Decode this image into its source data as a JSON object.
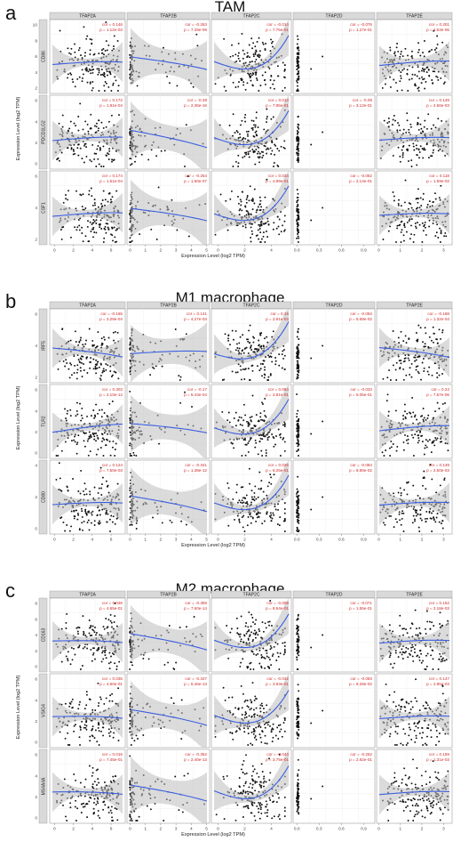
{
  "chart_data": [
    {
      "type": "scatter",
      "panel_label": "a",
      "title": "TAM",
      "columns": [
        "TFAP2A",
        "TFAP2B",
        "TFAP2C",
        "TFAP2D",
        "TFAP2E"
      ],
      "rows": [
        "CD86",
        "PDCD1LG2",
        "CSF1"
      ],
      "xlabel": "Expression Level (log2 TPM)",
      "ylabel": "Expression Level (log2 TPM)",
      "stats": [
        [
          {
            "cor": "0.146",
            "p": "1.12e-03"
          },
          {
            "cor": "-0.263",
            "p": "7.29e-09"
          },
          {
            "cor": "-0.014",
            "p": "7.75e-01"
          },
          {
            "cor": "-0.076",
            "p": "1.27e-01"
          },
          {
            "cor": "0.201",
            "p": "4.63e-06"
          }
        ],
        [
          {
            "cor": "0.172",
            "p": "1.81e-04"
          },
          {
            "cor": "-0.39",
            "p": "2.36e-16"
          },
          {
            "cor": "0.013",
            "p": "7.95e-01"
          },
          {
            "cor": "-0.05",
            "p": "3.12e-01"
          },
          {
            "cor": "0.149",
            "p": "2.56e-03"
          }
        ],
        [
          {
            "cor": "0.174",
            "p": "1.51e-04"
          },
          {
            "cor": "-0.254",
            "p": "1.50e-07"
          },
          {
            "cor": "0.034",
            "p": "4.99e-01"
          },
          {
            "cor": "-0.062",
            "p": "2.14e-01"
          },
          {
            "cor": "0.118",
            "p": "1.59e-02"
          }
        ]
      ]
    },
    {
      "type": "scatter",
      "panel_label": "b",
      "title": "M1 macrophage",
      "columns": [
        "TFAP2A",
        "TFAP2B",
        "TFAP2C",
        "TFAP2D",
        "TFAP2E"
      ],
      "rows": [
        "IRF5",
        "TLR2",
        "CD80"
      ],
      "xlabel": "Expression Level (log2 TPM)",
      "ylabel": "Expression Level (log2 TPM)",
      "stats": [
        [
          {
            "cor": "-0.165",
            "p": "3.28e-04"
          },
          {
            "cor": "0.141",
            "p": "4.27e-03"
          },
          {
            "cor": "0.15",
            "p": "2.61e-03"
          },
          {
            "cor": "-0.094",
            "p": "5.68e-02"
          },
          {
            "cor": "-0.188",
            "p": "1.32e-04"
          }
        ],
        [
          {
            "cor": "0.303",
            "p": "2.10e-12"
          },
          {
            "cor": "-0.17",
            "p": "5.43e-04"
          },
          {
            "cor": "0.054",
            "p": "2.81e-01"
          },
          {
            "cor": "-0.033",
            "p": "5.05e-01"
          },
          {
            "cor": "0.22",
            "p": "7.57e-06"
          }
        ],
        [
          {
            "cor": "0.124",
            "p": "7.50e-03"
          },
          {
            "cor": "-0.341",
            "p": "1.38e-12"
          },
          {
            "cor": "0.026",
            "p": "6.25e-01"
          },
          {
            "cor": "-0.084",
            "p": "8.86e-02"
          },
          {
            "cor": "0.149",
            "p": "2.50e-03"
          }
        ]
      ]
    },
    {
      "type": "scatter",
      "panel_label": "c",
      "title": "M2 macrophage",
      "columns": [
        "TFAP2A",
        "TFAP2B",
        "TFAP2C",
        "TFAP2D",
        "TFAP2E"
      ],
      "rows": [
        "CD163",
        "VSIG4",
        "MS4A4A"
      ],
      "xlabel": "Expression Level (log2 TPM)",
      "ylabel": "Expression Level (log2 TPM)",
      "stats": [
        [
          {
            "cor": "0.036",
            "p": "4.65e-01"
          },
          {
            "cor": "-0.359",
            "p": "7.60e-14"
          },
          {
            "cor": "-0.009",
            "p": "8.54e-01"
          },
          {
            "cor": "-0.071",
            "p": "1.55e-01"
          },
          {
            "cor": "0.152",
            "p": "2.18e-03"
          }
        ],
        [
          {
            "cor": "0.035",
            "p": "4.60e-01"
          },
          {
            "cor": "-0.347",
            "p": "5.46e-13"
          },
          {
            "cor": "-0.042",
            "p": "3.93e-01"
          },
          {
            "cor": "-0.083",
            "p": "9.28e-02"
          },
          {
            "cor": "0.147",
            "p": "2.95e-03"
          }
        ],
        [
          {
            "cor": "0.016",
            "p": "7.45e-01"
          },
          {
            "cor": "-0.352",
            "p": "2.40e-13"
          },
          {
            "cor": "-0.044",
            "p": "3.75e-01"
          },
          {
            "cor": "-0.252",
            "p": "2.82e-01"
          },
          {
            "cor": "0.159",
            "p": "1.31e-03"
          }
        ]
      ]
    }
  ],
  "x_axes": [
    {
      "ticks": [
        "0",
        "2",
        "4",
        "6"
      ],
      "domain": [
        -0.5,
        7.5
      ]
    },
    {
      "ticks": [
        "0",
        "1",
        "2",
        "3",
        "4",
        "5"
      ],
      "domain": [
        -0.2,
        5.2
      ]
    },
    {
      "ticks": [
        "0",
        "2",
        "4"
      ],
      "domain": [
        -0.5,
        5.5
      ]
    },
    {
      "ticks": [
        "0.0",
        "0.3",
        "0.6",
        "0.9"
      ],
      "domain": [
        -0.05,
        1.05
      ]
    },
    {
      "ticks": [
        "0",
        "1",
        "2",
        "3"
      ],
      "domain": [
        -0.1,
        3.4
      ]
    }
  ],
  "y_ticks": {
    "a": [
      [
        "2",
        "4",
        "6",
        "8",
        "10"
      ],
      [
        "0",
        "2",
        "4",
        "6"
      ],
      [
        "2",
        "4",
        "6"
      ]
    ],
    "b": [
      [
        "2",
        "4",
        "6"
      ],
      [
        "0",
        "2",
        "4",
        "6"
      ],
      [
        "0",
        "2",
        "4"
      ]
    ],
    "c": [
      [
        "0",
        "2",
        "4",
        "6",
        "8"
      ],
      [
        "0",
        "2",
        "4",
        "6"
      ],
      [
        "0",
        "2",
        "4",
        "6"
      ]
    ]
  },
  "colors": {
    "point": "#111111",
    "fit": "#3b5ee0",
    "band": "#bdbdbd",
    "strip": "#d9d9d9",
    "stat": "#d12a2a"
  }
}
